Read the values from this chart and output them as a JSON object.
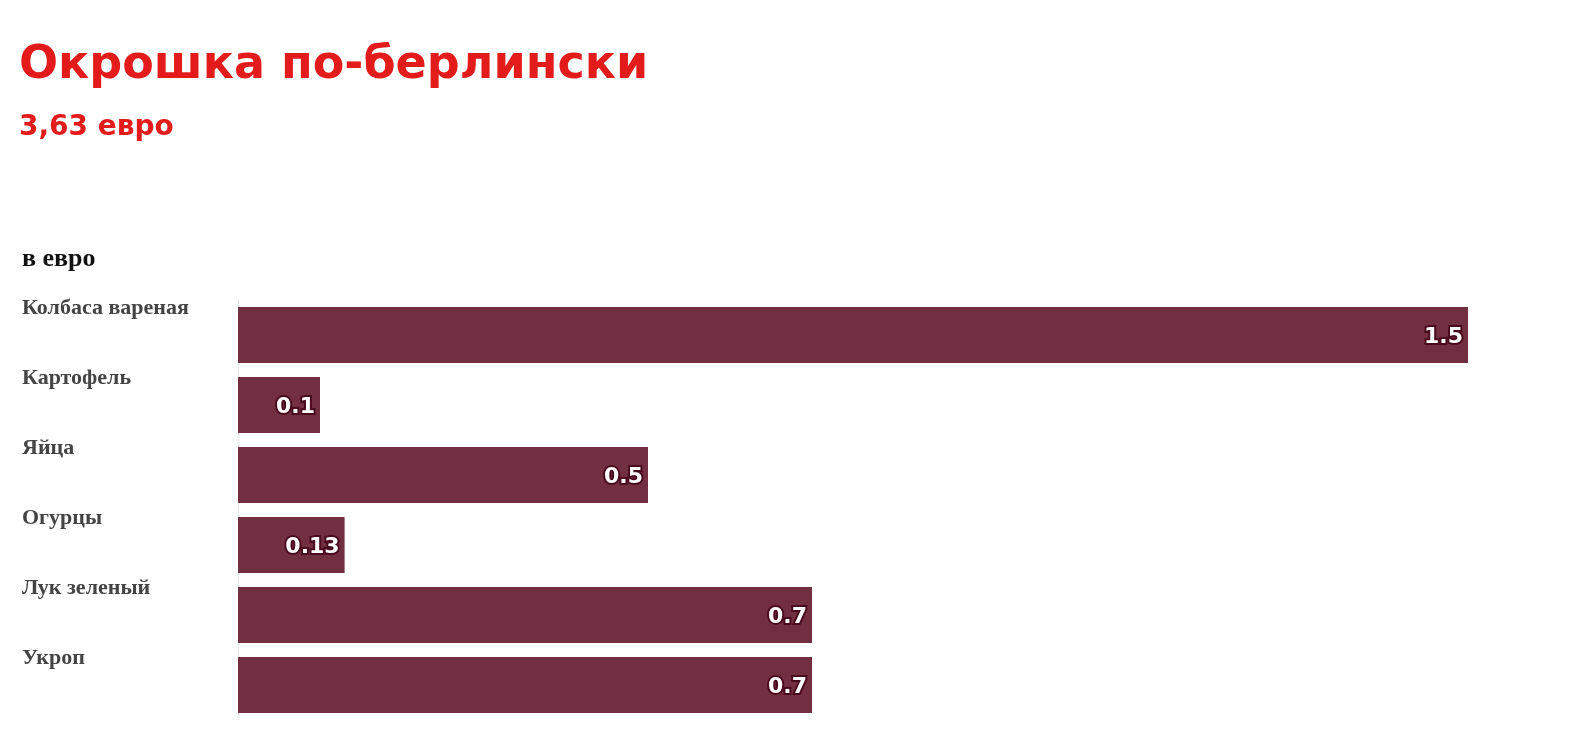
{
  "chart_data": {
    "type": "bar",
    "orientation": "horizontal",
    "title": "Окрошка по-берлински",
    "subtitle": "3,63 евро",
    "ylabel": "в евро",
    "categories": [
      "Колбаса вареная",
      "Картофель",
      "Яйца",
      "Огурцы",
      "Лук зеленый",
      "Укроп"
    ],
    "values": [
      1.5,
      0.1,
      0.5,
      0.13,
      0.7,
      0.7
    ],
    "color": "#722f42",
    "data_labels": true
  }
}
